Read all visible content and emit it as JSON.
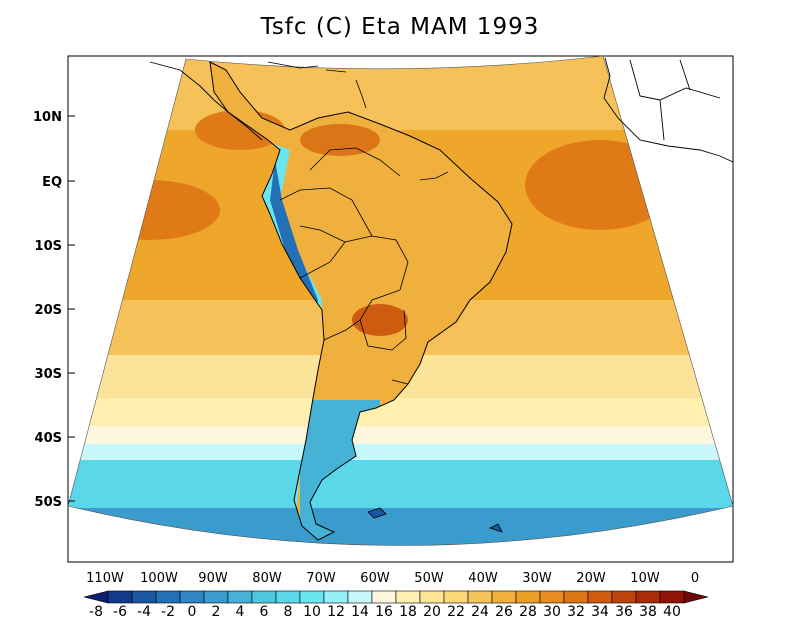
{
  "title": "Tsfc (C) Eta MAM 1993",
  "map": {
    "lat_ticks": [
      "10N",
      "EQ",
      "10S",
      "20S",
      "30S",
      "40S",
      "50S"
    ],
    "lon_ticks": [
      "110W",
      "100W",
      "90W",
      "80W",
      "70W",
      "60W",
      "50W",
      "40W",
      "30W",
      "20W",
      "10W",
      "0"
    ]
  },
  "colorbar": {
    "labels": [
      "-8",
      "-6",
      "-4",
      "-2",
      "0",
      "2",
      "4",
      "6",
      "8",
      "10",
      "12",
      "14",
      "16",
      "18",
      "20",
      "22",
      "24",
      "26",
      "28",
      "30",
      "32",
      "34",
      "36",
      "38",
      "40"
    ],
    "colors": [
      "#0c1f6e",
      "#123a8a",
      "#1b56a3",
      "#2270b6",
      "#2f86c2",
      "#3a9ccc",
      "#45b2d6",
      "#4fc7de",
      "#5ad7e8",
      "#6ae6f2",
      "#96f0f8",
      "#c8f8fc",
      "#fff6e0",
      "#fff0b0",
      "#ffe696",
      "#fcd878",
      "#f6c45c",
      "#f0b03e",
      "#ec9f28",
      "#e68c20",
      "#dc7418",
      "#ce5c10",
      "#bc440c",
      "#a82c08",
      "#8e1408",
      "#6e0808"
    ]
  },
  "colors": {
    "ocean_warm": "#efa72b",
    "ocean_hot": "#e07a16",
    "ocean_mild": "#f5c158",
    "ocean_cool": "#fbe39a",
    "ocean_cold": "#5ad7e8",
    "ocean_coldest": "#3a9ccc"
  }
}
